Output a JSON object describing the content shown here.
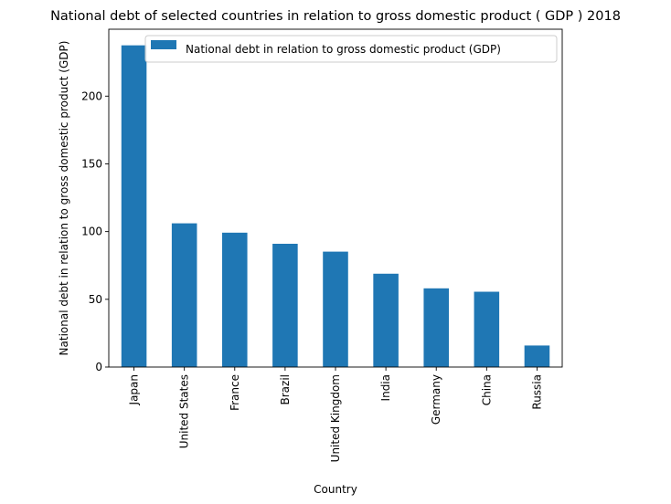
{
  "chart_data": {
    "type": "bar",
    "title": "National debt of selected countries in relation to gross domestic product ( GDP ) 2018",
    "xlabel": "Country",
    "ylabel": "National debt in relation to gross domestic product (GDP)",
    "categories": [
      "Japan",
      "United States",
      "France",
      "Brazil",
      "United Kingdom",
      "India",
      "Germany",
      "China",
      "Russia"
    ],
    "series": [
      {
        "name": "National debt in relation to gross domestic product (GDP)",
        "values": [
          237.5,
          106.1,
          99.2,
          91.0,
          85.2,
          68.9,
          58.1,
          55.6,
          15.9
        ],
        "color": "#1f77b4"
      }
    ],
    "ylim": [
      0,
      249.4
    ],
    "yticks": [
      0,
      50,
      100,
      150,
      200
    ],
    "grid": false,
    "legend_position": "top-right"
  }
}
